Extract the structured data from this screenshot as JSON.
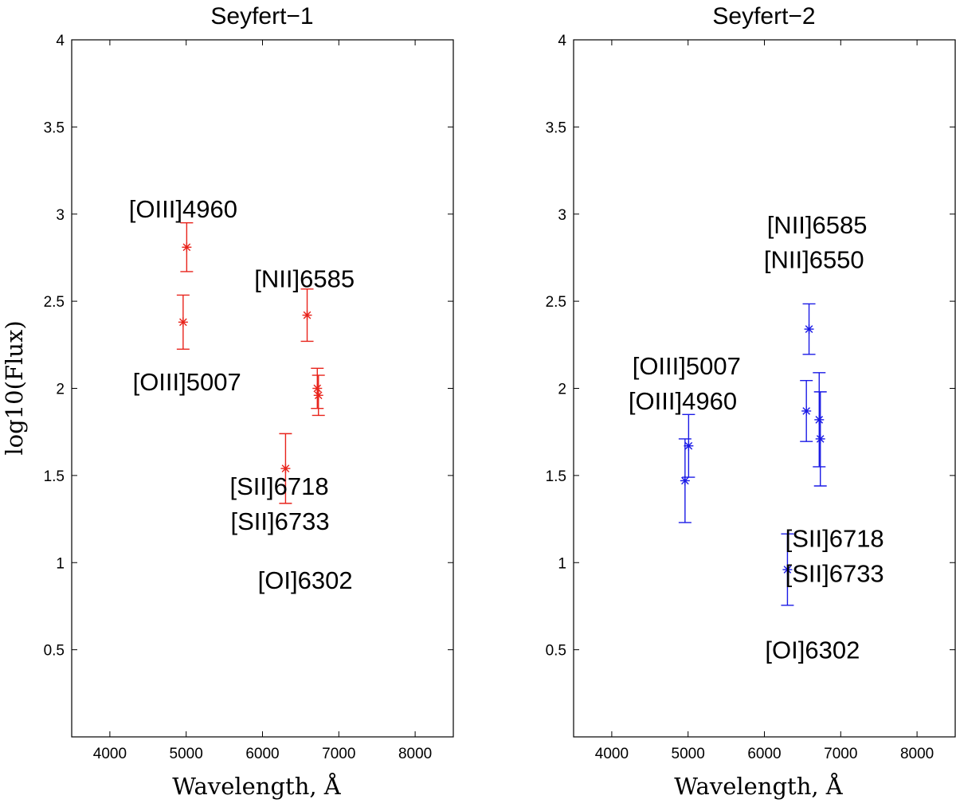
{
  "chart_data": [
    {
      "type": "scatter",
      "title": "Seyfert−1",
      "xlabel": "Wavelength, Å",
      "ylabel": "log10(Flux)",
      "xlim": [
        3500,
        8500
      ],
      "ylim": [
        0,
        4
      ],
      "xticks": [
        "4000",
        "5000",
        "6000",
        "7000",
        "8000"
      ],
      "yticks": [
        "0.5",
        "1",
        "1.5",
        "2",
        "2.5",
        "3",
        "3.5",
        "4"
      ],
      "color": "#e8231b",
      "points": [
        {
          "x": 4960,
          "y": 2.38,
          "err": 0.155
        },
        {
          "x": 5007,
          "y": 2.81,
          "err": 0.14
        },
        {
          "x": 6302,
          "y": 1.54,
          "err": 0.2
        },
        {
          "x": 6585,
          "y": 2.42,
          "err": 0.15
        },
        {
          "x": 6718,
          "y": 2.0,
          "err": 0.115
        },
        {
          "x": 6733,
          "y": 1.96,
          "err": 0.115
        }
      ],
      "annotations": [
        {
          "text": "[OIII]4960",
          "x": 4960,
          "y": 3.03
        },
        {
          "text": "[NII]6585",
          "x": 6550,
          "y": 2.63
        },
        {
          "text": "[OIII]5007",
          "x": 5010,
          "y": 2.04
        },
        {
          "text": "[SII]6718",
          "x": 6220,
          "y": 1.44
        },
        {
          "text": "[SII]6733",
          "x": 6230,
          "y": 1.24
        },
        {
          "text": "[OI]6302",
          "x": 6560,
          "y": 0.9
        }
      ]
    },
    {
      "type": "scatter",
      "title": "Seyfert−2",
      "xlabel": "Wavelength, Å",
      "ylabel": "",
      "xlim": [
        3500,
        8500
      ],
      "ylim": [
        0,
        4
      ],
      "xticks": [
        "4000",
        "5000",
        "6000",
        "7000",
        "8000"
      ],
      "yticks": [
        "0.5",
        "1",
        "1.5",
        "2",
        "2.5",
        "3",
        "3.5",
        "4"
      ],
      "color": "#1a1ae6",
      "points": [
        {
          "x": 4960,
          "y": 1.47,
          "err": 0.24
        },
        {
          "x": 5007,
          "y": 1.67,
          "err": 0.18
        },
        {
          "x": 6302,
          "y": 0.96,
          "err": 0.205
        },
        {
          "x": 6550,
          "y": 1.87,
          "err": 0.175
        },
        {
          "x": 6585,
          "y": 2.34,
          "err": 0.145
        },
        {
          "x": 6718,
          "y": 1.82,
          "err": 0.27
        },
        {
          "x": 6733,
          "y": 1.71,
          "err": 0.27
        }
      ],
      "annotations": [
        {
          "text": "[NII]6585",
          "x": 6690,
          "y": 2.94
        },
        {
          "text": "[NII]6550",
          "x": 6650,
          "y": 2.74
        },
        {
          "text": "[OIII]5007",
          "x": 4980,
          "y": 2.13
        },
        {
          "text": "[OIII]4960",
          "x": 4930,
          "y": 1.93
        },
        {
          "text": "[SII]6718",
          "x": 6920,
          "y": 1.14
        },
        {
          "text": "[SII]6733",
          "x": 6920,
          "y": 0.94
        },
        {
          "text": "[OI]6302",
          "x": 6630,
          "y": 0.5
        }
      ]
    }
  ]
}
